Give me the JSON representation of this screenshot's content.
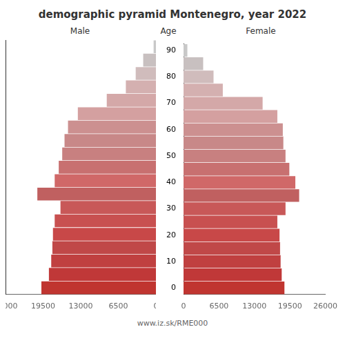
{
  "chart_data": {
    "type": "bar",
    "orientation": "horizontal",
    "title": "demographic pyramid Montenegro, year 2022",
    "ylabel": "Age",
    "annotations": [
      "www.iz.sk/RME000"
    ],
    "categories": [
      "0",
      null,
      "10",
      null,
      "20",
      null,
      "30",
      null,
      "40",
      null,
      "50",
      null,
      "60",
      null,
      "70",
      null,
      "80",
      null,
      "90"
    ],
    "series": [
      {
        "name": "Male",
        "values": [
          19800,
          18500,
          18100,
          17900,
          17800,
          17500,
          16500,
          20500,
          17500,
          16800,
          16200,
          15800,
          15200,
          13500,
          8500,
          5200,
          3500,
          2200,
          400
        ]
      },
      {
        "name": "Female",
        "values": [
          18500,
          18000,
          17800,
          17700,
          17600,
          17200,
          18700,
          21200,
          20500,
          19400,
          18700,
          18300,
          18200,
          17200,
          14500,
          7200,
          5500,
          3600,
          700
        ]
      }
    ],
    "colors": [
      "#c03530",
      "#c03838",
      "#c04040",
      "#c04848",
      "#c84848",
      "#c85050",
      "#c85858",
      "#c06060",
      "#d06868",
      "#c87070",
      "#c88080",
      "#c88888",
      "#cc9090",
      "#d4a0a0",
      "#d4a8a8",
      "#d4b0b0",
      "#d0bcbc",
      "#c8c0c0",
      "#c8c8c8"
    ],
    "xlim": [
      0,
      26000
    ],
    "xticks": [
      0,
      6500,
      13000,
      19500,
      26000
    ],
    "grid": false
  }
}
